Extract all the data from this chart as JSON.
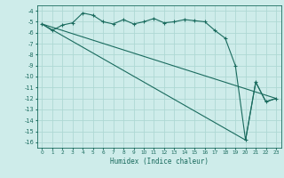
{
  "xlabel": "Humidex (Indice chaleur)",
  "bg_color": "#ceecea",
  "grid_color": "#aed8d4",
  "line_color": "#1a6b5e",
  "xlim": [
    -0.5,
    23.5
  ],
  "ylim": [
    -16.5,
    -3.5
  ],
  "xticks": [
    0,
    1,
    2,
    3,
    4,
    5,
    6,
    7,
    8,
    9,
    10,
    11,
    12,
    13,
    14,
    15,
    16,
    17,
    18,
    19,
    20,
    21,
    22,
    23
  ],
  "yticks": [
    -4,
    -5,
    -6,
    -7,
    -8,
    -9,
    -10,
    -11,
    -12,
    -13,
    -14,
    -15,
    -16
  ],
  "series1_x": [
    0,
    1,
    2,
    3,
    4,
    5,
    6,
    7,
    8,
    9,
    10,
    11,
    12,
    13,
    14,
    15,
    16,
    17,
    18,
    19,
    20,
    21,
    22,
    23
  ],
  "series1_y": [
    -5.2,
    -5.8,
    -5.3,
    -5.1,
    -4.2,
    -4.4,
    -5.0,
    -5.2,
    -4.8,
    -5.2,
    -5.0,
    -4.7,
    -5.1,
    -5.0,
    -4.8,
    -4.9,
    -5.0,
    -5.8,
    -6.5,
    -9.0,
    -15.8,
    -10.5,
    -12.3,
    -12.0
  ],
  "series2_x": [
    0,
    20,
    21,
    22,
    23
  ],
  "series2_y": [
    -5.2,
    -15.8,
    -10.5,
    -12.3,
    -12.0
  ],
  "series3_x": [
    0,
    23
  ],
  "series3_y": [
    -5.2,
    -12.0
  ],
  "marker": "+"
}
